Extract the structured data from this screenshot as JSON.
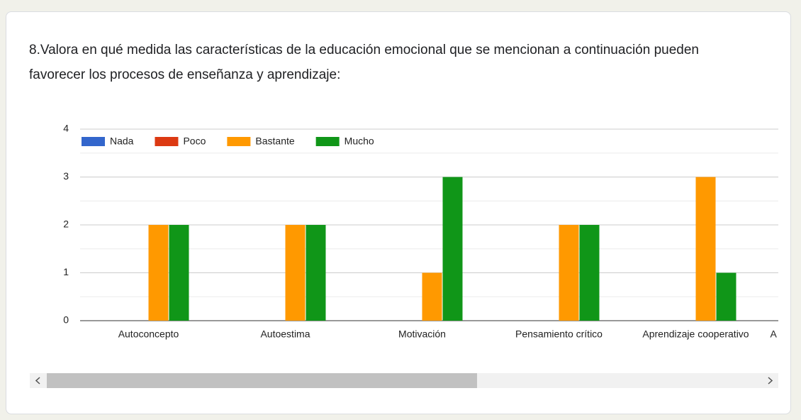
{
  "chart_data": {
    "type": "bar",
    "title": "8.Valora en qué medida las características de la educación emocional que se mencionan a continuación pueden favorecer los procesos de enseñanza y aprendizaje:",
    "categories": [
      "Autoconcepto",
      "Autoestima",
      "Motivación",
      "Pensamiento crítico",
      "Aprendizaje cooperativo",
      "A"
    ],
    "series": [
      {
        "name": "Nada",
        "color": "#3366cc",
        "values": [
          0,
          0,
          0,
          0,
          0,
          null
        ]
      },
      {
        "name": "Poco",
        "color": "#dc3912",
        "values": [
          0,
          0,
          0,
          0,
          0,
          null
        ]
      },
      {
        "name": "Bastante",
        "color": "#ff9900",
        "values": [
          2,
          2,
          1,
          2,
          3,
          null
        ]
      },
      {
        "name": "Mucho",
        "color": "#109618",
        "values": [
          2,
          2,
          3,
          2,
          1,
          null
        ]
      }
    ],
    "ylim": [
      0,
      4
    ],
    "yticks": [
      0,
      1,
      2,
      3,
      4
    ],
    "grid": true,
    "legend": "top"
  }
}
